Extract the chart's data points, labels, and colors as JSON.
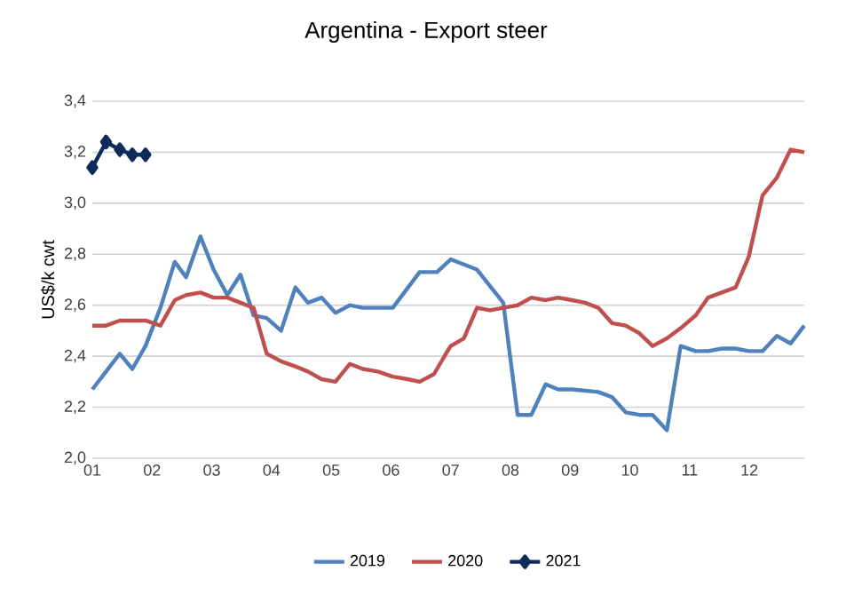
{
  "chart_data": {
    "type": "line",
    "title": "Argentina - Export steer",
    "ylabel": "US$/k cwt",
    "xlim": [
      1,
      12.92
    ],
    "ylim": [
      2.0,
      3.4
    ],
    "xticks": [
      {
        "value": 1,
        "label": "01"
      },
      {
        "value": 2,
        "label": "02"
      },
      {
        "value": 3,
        "label": "03"
      },
      {
        "value": 4,
        "label": "04"
      },
      {
        "value": 5,
        "label": "05"
      },
      {
        "value": 6,
        "label": "06"
      },
      {
        "value": 7,
        "label": "07"
      },
      {
        "value": 8,
        "label": "08"
      },
      {
        "value": 9,
        "label": "09"
      },
      {
        "value": 10,
        "label": "10"
      },
      {
        "value": 11,
        "label": "11"
      },
      {
        "value": 12,
        "label": "12"
      }
    ],
    "yticks": [
      {
        "value": 2.0,
        "label": "2,0"
      },
      {
        "value": 2.2,
        "label": "2,2"
      },
      {
        "value": 2.4,
        "label": "2,4"
      },
      {
        "value": 2.6,
        "label": "2,6"
      },
      {
        "value": 2.8,
        "label": "2,8"
      },
      {
        "value": 3.0,
        "label": "3,0"
      },
      {
        "value": 3.2,
        "label": "3,2"
      },
      {
        "value": 3.4,
        "label": "3,4"
      }
    ],
    "grid": "y",
    "legend": "bottom",
    "line_style": "solid",
    "series": [
      {
        "name": "2019",
        "color": "#4f81bd",
        "marker": "none",
        "x": [
          1.0,
          1.23,
          1.46,
          1.67,
          1.89,
          2.14,
          2.38,
          2.57,
          2.81,
          3.03,
          3.26,
          3.48,
          3.7,
          3.92,
          4.16,
          4.4,
          4.61,
          4.84,
          5.07,
          5.31,
          5.53,
          6.03,
          6.48,
          6.77,
          7.0,
          7.22,
          7.44,
          7.88,
          8.12,
          8.35,
          8.59,
          8.8,
          9.03,
          9.47,
          9.7,
          9.93,
          10.16,
          10.38,
          10.62,
          10.85,
          11.1,
          11.31,
          11.54,
          11.77,
          11.99,
          12.22,
          12.46,
          12.69,
          12.92
        ],
        "values": [
          2.27,
          2.34,
          2.41,
          2.35,
          2.44,
          2.59,
          2.77,
          2.71,
          2.87,
          2.74,
          2.64,
          2.72,
          2.56,
          2.55,
          2.5,
          2.67,
          2.61,
          2.63,
          2.57,
          2.6,
          2.59,
          2.59,
          2.73,
          2.73,
          2.78,
          2.76,
          2.74,
          2.61,
          2.17,
          2.17,
          2.29,
          2.27,
          2.27,
          2.26,
          2.24,
          2.18,
          2.17,
          2.17,
          2.11,
          2.44,
          2.42,
          2.42,
          2.43,
          2.43,
          2.42,
          2.42,
          2.48,
          2.45,
          2.52
        ]
      },
      {
        "name": "2020",
        "color": "#c0504d",
        "marker": "none",
        "x": [
          1.0,
          1.23,
          1.46,
          1.67,
          1.89,
          2.14,
          2.38,
          2.57,
          2.81,
          3.03,
          3.26,
          3.48,
          3.7,
          3.92,
          4.16,
          4.4,
          4.61,
          4.84,
          5.07,
          5.31,
          5.53,
          5.78,
          6.03,
          6.28,
          6.48,
          6.72,
          6.92,
          7.0,
          7.22,
          7.44,
          7.66,
          7.88,
          8.12,
          8.35,
          8.59,
          8.8,
          9.03,
          9.25,
          9.47,
          9.7,
          9.93,
          10.16,
          10.38,
          10.62,
          10.85,
          11.1,
          11.31,
          11.54,
          11.77,
          11.99,
          12.22,
          12.46,
          12.69,
          12.92
        ],
        "values": [
          2.52,
          2.52,
          2.54,
          2.54,
          2.54,
          2.52,
          2.62,
          2.64,
          2.65,
          2.63,
          2.63,
          2.61,
          2.59,
          2.41,
          2.38,
          2.36,
          2.34,
          2.31,
          2.3,
          2.37,
          2.35,
          2.34,
          2.32,
          2.31,
          2.3,
          2.33,
          2.41,
          2.44,
          2.47,
          2.59,
          2.58,
          2.59,
          2.6,
          2.63,
          2.62,
          2.63,
          2.62,
          2.61,
          2.59,
          2.53,
          2.52,
          2.49,
          2.44,
          2.47,
          2.51,
          2.56,
          2.63,
          2.65,
          2.67,
          2.79,
          3.03,
          3.1,
          3.21,
          3.2
        ]
      },
      {
        "name": "2021",
        "color": "#0f2b5b",
        "marker": "diamond",
        "x": [
          1.0,
          1.23,
          1.46,
          1.67,
          1.89
        ],
        "values": [
          3.14,
          3.24,
          3.21,
          3.19,
          3.19
        ]
      }
    ]
  }
}
